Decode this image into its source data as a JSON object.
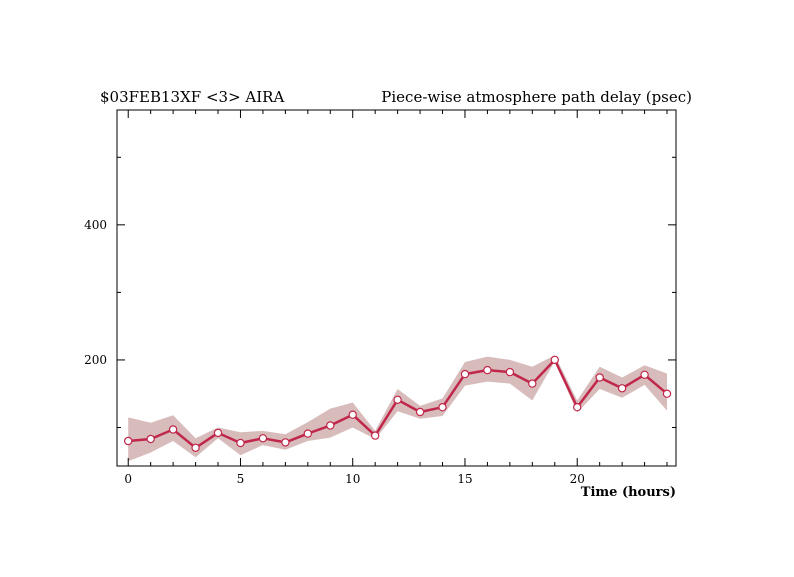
{
  "chart_data": {
    "type": "line",
    "title_left": "$03FEB13XF <3>  AIRA",
    "title_right": "Piece-wise atmosphere path delay (psec)",
    "xlabel": "Time (hours)",
    "ylabel": "",
    "xlim": [
      -0.5,
      24.4
    ],
    "ylim": [
      43,
      570
    ],
    "x_ticks": [
      0,
      5,
      10,
      15,
      20
    ],
    "y_ticks": [
      200,
      400
    ],
    "grid": false,
    "colors": {
      "line": "#c0274a",
      "band": "#d8bcbc",
      "marker_fill": "#ffffff"
    },
    "series": [
      {
        "x": [
          0,
          1,
          2,
          3,
          4,
          5,
          6,
          7,
          8,
          9,
          10,
          11,
          12,
          13,
          14,
          15,
          16,
          17,
          18,
          19,
          20,
          21,
          22,
          23,
          24
        ],
        "values": [
          80,
          83,
          97,
          70,
          92,
          77,
          84,
          78,
          91,
          103,
          119,
          88,
          141,
          123,
          130,
          179,
          185,
          182,
          165,
          200,
          130,
          174,
          158,
          178,
          150
        ],
        "band_upper": [
          115,
          107,
          118,
          84,
          100,
          93,
          95,
          90,
          108,
          128,
          137,
          95,
          157,
          132,
          143,
          197,
          205,
          200,
          190,
          207,
          140,
          190,
          174,
          192,
          180
        ],
        "band_lower": [
          50,
          63,
          80,
          56,
          84,
          59,
          74,
          67,
          80,
          85,
          100,
          83,
          124,
          113,
          117,
          162,
          168,
          165,
          140,
          198,
          122,
          157,
          144,
          163,
          125
        ]
      }
    ]
  }
}
